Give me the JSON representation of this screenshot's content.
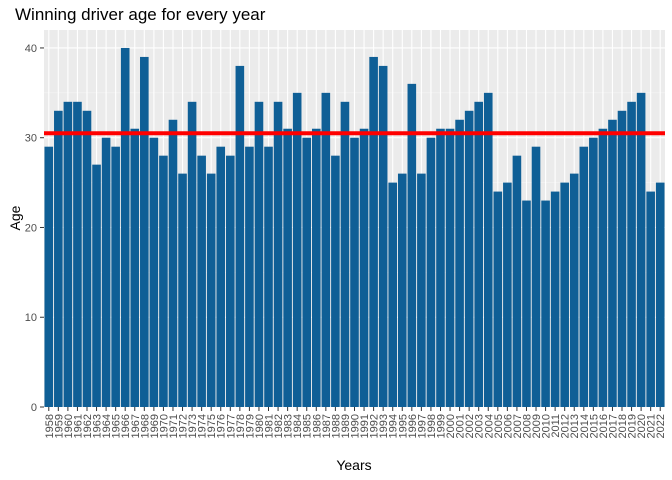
{
  "chart_data": {
    "type": "bar",
    "title": "Winning driver age for every year",
    "xlabel": "Years",
    "ylabel": "Age",
    "ylim": [
      0,
      42
    ],
    "yticks": [
      0,
      10,
      20,
      30,
      40
    ],
    "grid": true,
    "reference_line": {
      "value": 30.5,
      "color": "#ff0000"
    },
    "bar_color": "#0f5f96",
    "panel_background": "#ebebeb",
    "categories": [
      "1958",
      "1959",
      "1960",
      "1961",
      "1962",
      "1963",
      "1964",
      "1965",
      "1966",
      "1967",
      "1968",
      "1969",
      "1970",
      "1971",
      "1972",
      "1973",
      "1974",
      "1975",
      "1976",
      "1977",
      "1978",
      "1979",
      "1980",
      "1981",
      "1982",
      "1983",
      "1984",
      "1985",
      "1986",
      "1987",
      "1988",
      "1989",
      "1990",
      "1991",
      "1992",
      "1993",
      "1994",
      "1995",
      "1996",
      "1997",
      "1998",
      "1999",
      "2000",
      "2001",
      "2002",
      "2003",
      "2004",
      "2005",
      "2006",
      "2007",
      "2008",
      "2009",
      "2010",
      "2011",
      "2012",
      "2013",
      "2014",
      "2015",
      "2016",
      "2017",
      "2018",
      "2019",
      "2020",
      "2021",
      "2022"
    ],
    "values": [
      29,
      33,
      34,
      34,
      33,
      27,
      30,
      29,
      40,
      31,
      39,
      30,
      28,
      32,
      26,
      34,
      28,
      26,
      29,
      28,
      38,
      29,
      34,
      29,
      34,
      31,
      35,
      30,
      31,
      35,
      28,
      34,
      30,
      31,
      39,
      38,
      25,
      26,
      36,
      26,
      30,
      31,
      31,
      32,
      33,
      34,
      35,
      24,
      25,
      28,
      23,
      29,
      23,
      24,
      25,
      26,
      29,
      30,
      31,
      32,
      33,
      34,
      35,
      24,
      25
    ]
  }
}
